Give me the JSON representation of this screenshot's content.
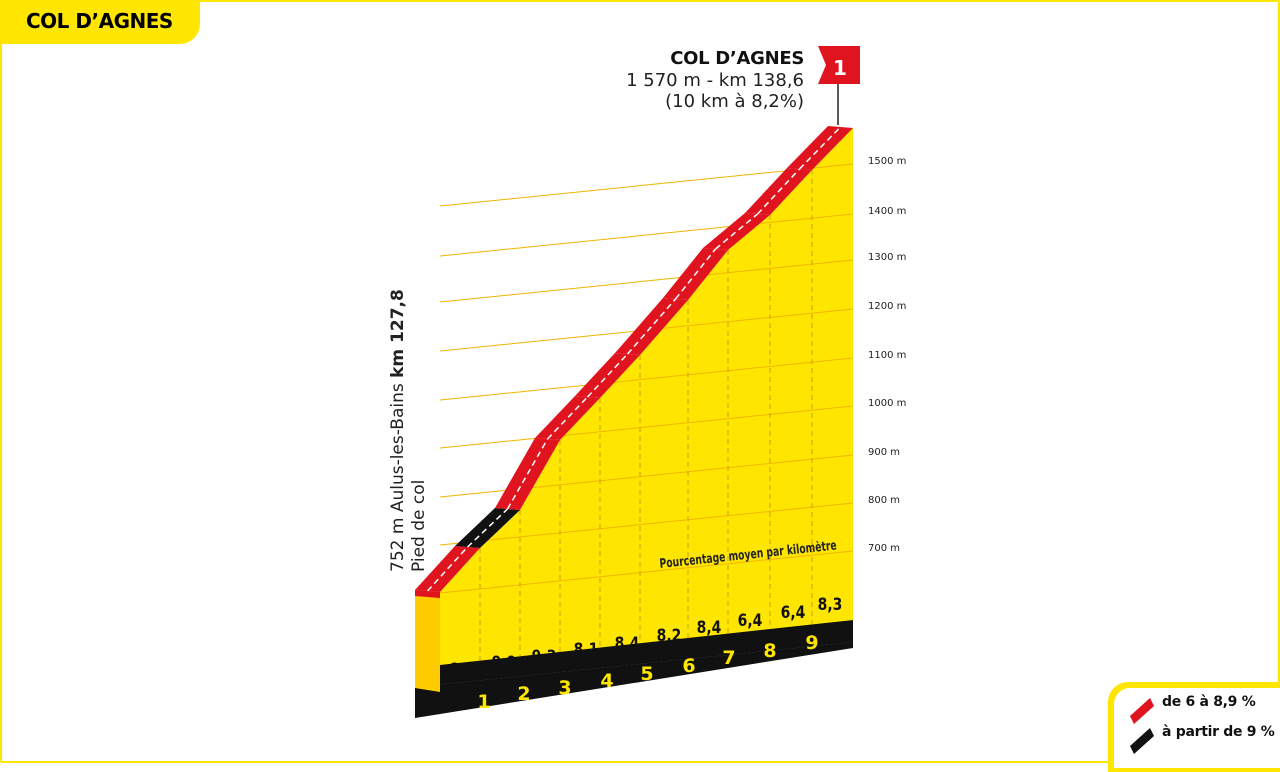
{
  "title": "COL D’AGNES",
  "summit": {
    "name": "COL D’AGNES",
    "altitude_km": "1 570 m - km 138,6",
    "climb": "(10 km à 8,2%)",
    "category": "1"
  },
  "start": {
    "altitude_place": "752 m Aulus-les-Bains ",
    "km": "km 127,8",
    "foot": "Pied de col"
  },
  "altitude_ticks": [
    "1500 m",
    "1400 m",
    "1300 m",
    "1200 m",
    "1100 m",
    "1000 m",
    "900 m",
    "800 m",
    "700 m"
  ],
  "gradient_caption": "Pourcentage moyen par kilomètre",
  "km_segments": [
    {
      "km": "1",
      "pct": "8,5"
    },
    {
      "km": "2",
      "pct": "9,9"
    },
    {
      "km": "3",
      "pct": "9,3"
    },
    {
      "km": "4",
      "pct": "8,1"
    },
    {
      "km": "5",
      "pct": "8,4"
    },
    {
      "km": "6",
      "pct": "8,2"
    },
    {
      "km": "7",
      "pct": "8,4"
    },
    {
      "km": "8",
      "pct": "6,4"
    },
    {
      "km": "9",
      "pct": "6,4"
    },
    {
      "km": "",
      "pct": "8,3"
    }
  ],
  "legend": [
    {
      "label": "de 6 à 8,9 %",
      "color": "#e0141e"
    },
    {
      "label": "à partir de 9 %",
      "color": "#111111"
    }
  ],
  "colors": {
    "yellow": "#ffe600",
    "red": "#e0141e",
    "black": "#111111",
    "side": "#ffcc00"
  }
}
